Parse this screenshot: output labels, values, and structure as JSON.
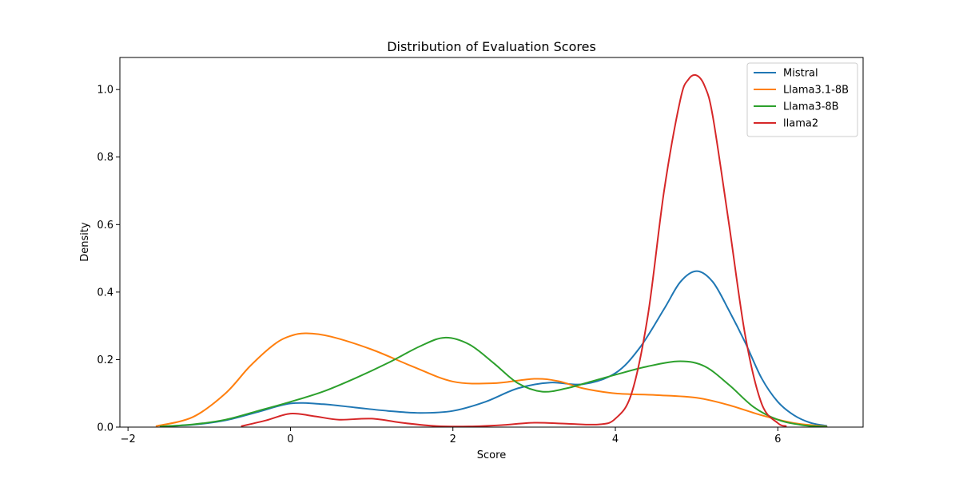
{
  "chart_data": {
    "type": "line",
    "title": "Distribution of Evaluation Scores",
    "xlabel": "Score",
    "ylabel": "Density",
    "xlim": [
      -2.1,
      7.05
    ],
    "ylim": [
      0,
      1.095
    ],
    "xticks": [
      -2,
      0,
      2,
      4,
      6
    ],
    "yticks": [
      0.0,
      0.2,
      0.4,
      0.6,
      0.8,
      1.0
    ],
    "xtick_labels": [
      "−2",
      "0",
      "2",
      "4",
      "6"
    ],
    "ytick_labels": [
      "0.0",
      "0.2",
      "0.4",
      "0.6",
      "0.8",
      "1.0"
    ],
    "grid": false,
    "legend_position": "top-right",
    "series": [
      {
        "name": "Mistral",
        "color": "#1f77b4",
        "x": [
          -1.6,
          -1.2,
          -0.8,
          -0.4,
          0.0,
          0.4,
          0.8,
          1.2,
          1.6,
          2.0,
          2.4,
          2.8,
          3.2,
          3.6,
          4.0,
          4.3,
          4.6,
          4.8,
          5.0,
          5.2,
          5.4,
          5.6,
          5.8,
          6.0,
          6.2,
          6.4,
          6.6
        ],
        "y": [
          0.002,
          0.007,
          0.02,
          0.045,
          0.07,
          0.068,
          0.058,
          0.048,
          0.042,
          0.048,
          0.075,
          0.115,
          0.132,
          0.127,
          0.16,
          0.235,
          0.35,
          0.43,
          0.462,
          0.43,
          0.345,
          0.25,
          0.145,
          0.075,
          0.035,
          0.013,
          0.004
        ]
      },
      {
        "name": "Llama3.1-8B",
        "color": "#ff7f0e",
        "x": [
          -1.65,
          -1.2,
          -0.8,
          -0.5,
          -0.2,
          0.0,
          0.2,
          0.5,
          1.0,
          1.5,
          2.0,
          2.5,
          3.0,
          3.3,
          3.6,
          4.0,
          4.5,
          5.0,
          5.4,
          5.8,
          6.2,
          6.6
        ],
        "y": [
          0.003,
          0.03,
          0.1,
          0.18,
          0.245,
          0.27,
          0.278,
          0.268,
          0.23,
          0.18,
          0.135,
          0.13,
          0.143,
          0.136,
          0.115,
          0.1,
          0.095,
          0.087,
          0.065,
          0.035,
          0.012,
          0.002
        ]
      },
      {
        "name": "Llama3-8B",
        "color": "#2ca02c",
        "x": [
          -1.6,
          -1.2,
          -0.8,
          -0.4,
          0.0,
          0.4,
          0.8,
          1.2,
          1.6,
          1.9,
          2.2,
          2.5,
          2.8,
          3.1,
          3.4,
          3.7,
          4.0,
          4.4,
          4.8,
          5.1,
          5.4,
          5.7,
          6.0,
          6.3,
          6.6
        ],
        "y": [
          0.002,
          0.008,
          0.022,
          0.048,
          0.075,
          0.105,
          0.145,
          0.19,
          0.24,
          0.265,
          0.245,
          0.19,
          0.13,
          0.105,
          0.115,
          0.135,
          0.155,
          0.18,
          0.195,
          0.18,
          0.125,
          0.06,
          0.022,
          0.006,
          0.001
        ]
      },
      {
        "name": "llama2",
        "color": "#d62728",
        "x": [
          -0.6,
          -0.3,
          0.0,
          0.3,
          0.6,
          1.0,
          1.4,
          1.8,
          2.2,
          2.6,
          3.0,
          3.4,
          3.8,
          4.0,
          4.2,
          4.4,
          4.6,
          4.8,
          4.9,
          5.0,
          5.1,
          5.2,
          5.4,
          5.6,
          5.8,
          6.0,
          6.1
        ],
        "y": [
          0.003,
          0.02,
          0.04,
          0.032,
          0.022,
          0.025,
          0.012,
          0.003,
          0.002,
          0.006,
          0.013,
          0.01,
          0.008,
          0.025,
          0.1,
          0.33,
          0.7,
          0.97,
          1.03,
          1.042,
          1.01,
          0.92,
          0.6,
          0.27,
          0.07,
          0.012,
          0.003
        ]
      }
    ]
  }
}
